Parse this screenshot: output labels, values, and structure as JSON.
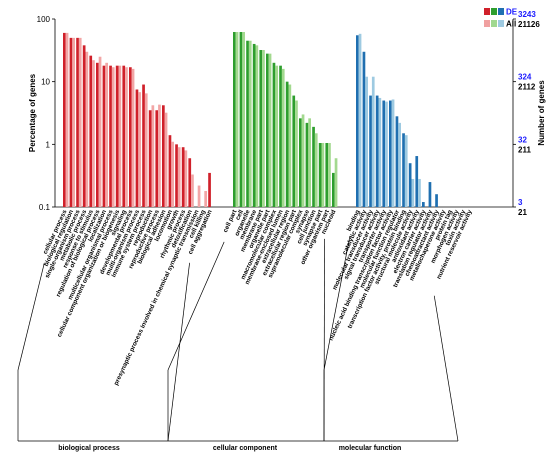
{
  "chart_data": {
    "type": "bar",
    "ylabel": "Percentage of genes",
    "ylabel_right": "Number of genes",
    "yscale": "log",
    "ylim": [
      0.1,
      100
    ],
    "yticks": [
      "100",
      "10",
      "1",
      "0.1"
    ],
    "right_ticks": [
      {
        "de": "3243",
        "all": "21126"
      },
      {
        "de": "324",
        "all": "2112"
      },
      {
        "de": "32",
        "all": "211"
      },
      {
        "de": "3",
        "all": "21"
      }
    ],
    "legend": [
      {
        "label": "DE",
        "colors": [
          "#d0202a",
          "#2e9e2e",
          "#1f6fb0"
        ]
      },
      {
        "label": "All",
        "colors": [
          "#f0a0a0",
          "#a0d890",
          "#9ecae1"
        ]
      }
    ],
    "groups": [
      {
        "name": "biological process",
        "de_color": "#d0202a",
        "all_color": "#f2a6a6",
        "categories": [
          "cellular process",
          "biological regulation",
          "single-organism process",
          "metabolic process",
          "response to stimulus",
          "regulation of biological process",
          "localization",
          "multicellular organismal process",
          "cellular component organization or biogenesis",
          "signaling",
          "developmental process",
          "multi-organism process",
          "immune system process",
          "reproduction",
          "reproductive process",
          "biological adhesion",
          "locomotion",
          "growth",
          "rhythmic process",
          "detoxification",
          "presynaptic process involved in chemical synaptic transmission",
          "cell killing",
          "cell aggregation"
        ],
        "de": [
          60,
          50,
          50,
          38,
          26,
          20,
          18,
          18,
          18,
          18,
          17,
          7.5,
          9,
          3.5,
          3.5,
          4.2,
          1.4,
          1.0,
          0.9,
          0.6,
          0,
          0,
          0.35
        ],
        "all": [
          60,
          50,
          50,
          30,
          22,
          25,
          20,
          17,
          18,
          17,
          16,
          6.8,
          6.5,
          4.2,
          4.3,
          3.2,
          1.1,
          0.9,
          0.8,
          0.33,
          0.22,
          0.18,
          0
        ]
      },
      {
        "name": "cellular component",
        "de_color": "#2e9e2e",
        "all_color": "#a3d98f",
        "categories": [
          "cell part",
          "cell",
          "organelle",
          "membrane",
          "membrane part",
          "organelle part",
          "macromolecular complex",
          "membrane-enclosed lumen",
          "extracellular region",
          "extracellular region part",
          "supramolecular complex",
          "synapse",
          "cell junction",
          "synapse part",
          "other organism part",
          "nucleoid"
        ],
        "de": [
          62,
          62,
          45,
          40,
          32,
          28,
          20,
          18,
          10,
          6,
          2.6,
          2.2,
          1.9,
          1.05,
          1.05,
          0.35
        ],
        "all": [
          62,
          62,
          45,
          38,
          32,
          28,
          18,
          16,
          9,
          5,
          3.0,
          2.6,
          1.5,
          1.05,
          1.05,
          0.6
        ]
      },
      {
        "name": "molecular function",
        "de_color": "#1f6fb0",
        "all_color": "#9ecae1",
        "categories": [
          "binding",
          "catalytic activity",
          "molecular transducer activity",
          "signal transducer activity",
          "transporter activity",
          "nucleic acid binding transcription factor activity",
          "molecular function regulator",
          "transcription factor activity, protein binding",
          "structural molecule activity",
          "antioxidant activity",
          "electron carrier activity",
          "translation regulator activity",
          "chemoattractant activity",
          "metallochaperone activity",
          "protein tag",
          "morphogen activity",
          "toxin activity",
          "nutrient reservoir activity"
        ],
        "de": [
          55,
          30,
          6,
          6,
          5,
          5,
          2.8,
          1.5,
          0.5,
          0.65,
          0.12,
          0.25,
          0.16,
          0,
          0,
          0,
          0,
          0
        ],
        "all": [
          58,
          12,
          12,
          5.5,
          4.8,
          5.2,
          2.2,
          1.4,
          0.28,
          0.28,
          0,
          0,
          0,
          0,
          0,
          0,
          0,
          0
        ]
      }
    ]
  }
}
